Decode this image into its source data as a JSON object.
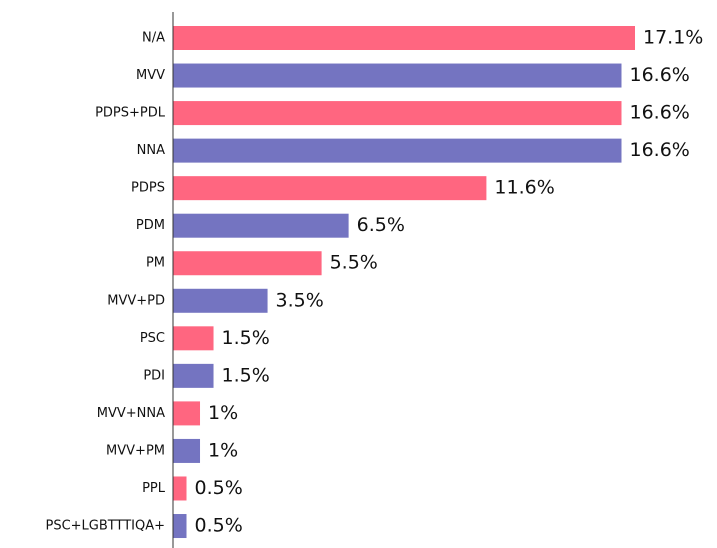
{
  "chart_data": {
    "type": "bar",
    "orientation": "horizontal",
    "categories": [
      "N/A",
      "MVV",
      "PDPS+PDL",
      "NNA",
      "PDPS",
      "PDM",
      "PM",
      "MVV+PD",
      "PSC",
      "PDI",
      "MVV+NNA",
      "MVV+PM",
      "PPL",
      "PSC+LGBTTTIQA+"
    ],
    "values": [
      17.1,
      16.6,
      16.6,
      16.6,
      11.6,
      6.5,
      5.5,
      3.5,
      1.5,
      1.5,
      1,
      1,
      0.5,
      0.5
    ],
    "value_labels": [
      "17.1%",
      "16.6%",
      "16.6%",
      "16.6%",
      "11.6%",
      "6.5%",
      "5.5%",
      "3.5%",
      "1.5%",
      "1.5%",
      "1%",
      "1%",
      "0.5%",
      "0.5%"
    ],
    "colors": [
      "#ff6680",
      "#7474c1",
      "#ff6680",
      "#7474c1",
      "#ff6680",
      "#7474c1",
      "#ff6680",
      "#7474c1",
      "#ff6680",
      "#7474c1",
      "#ff6680",
      "#7474c1",
      "#ff6680",
      "#7474c1"
    ]
  }
}
